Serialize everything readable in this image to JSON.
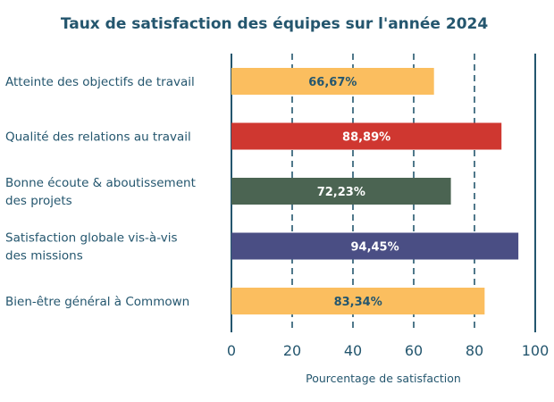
{
  "chart_data": {
    "type": "bar",
    "orientation": "horizontal",
    "title": "Taux de satisfaction des équipes sur l'année 2024",
    "xlabel": "Pourcentage de satisfaction",
    "ylabel": "",
    "xlim": [
      0,
      100
    ],
    "ticks": [
      0,
      20,
      40,
      60,
      80,
      100
    ],
    "grid": "dashed vertical",
    "categories": [
      [
        "Atteinte des objectifs de travail"
      ],
      [
        "Qualité des relations au travail"
      ],
      [
        "Bonne écoute & aboutissement",
        "des projets"
      ],
      [
        "Satisfaction globale vis-à-vis",
        "des missions"
      ],
      [
        "Bien-être général à Commown"
      ]
    ],
    "values": [
      66.67,
      88.89,
      72.23,
      94.45,
      83.34
    ],
    "data_labels": [
      "66,67%",
      "88,89%",
      "72,23%",
      "94,45%",
      "83,34%"
    ],
    "colors": [
      "#fbbe5f",
      "#cf3730",
      "#4b6452",
      "#4a4e84",
      "#fbbe5f"
    ],
    "label_colors": [
      "#24566e",
      "#ffffff",
      "#ffffff",
      "#ffffff",
      "#24566e"
    ],
    "axis_color": "#24566e"
  }
}
